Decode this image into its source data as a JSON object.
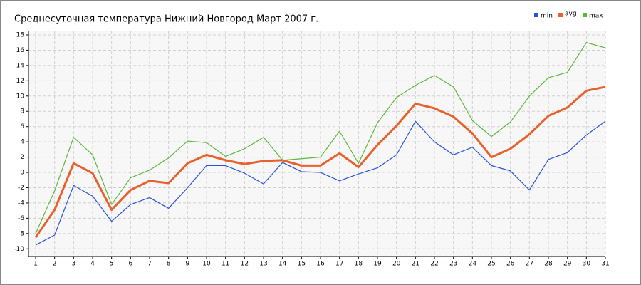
{
  "chart_data": {
    "type": "line",
    "title": "Среднесуточная температура Нижний Новгород  Март 2007 г.",
    "x": [
      1,
      2,
      3,
      4,
      5,
      6,
      7,
      8,
      9,
      10,
      11,
      12,
      13,
      14,
      15,
      16,
      17,
      18,
      19,
      20,
      21,
      22,
      23,
      24,
      25,
      26,
      27,
      28,
      29,
      30,
      31
    ],
    "xlim": [
      1,
      31
    ],
    "ylim": [
      -11,
      18
    ],
    "yticks": [
      -10,
      -8,
      -6,
      -4,
      -2,
      0,
      2,
      4,
      6,
      8,
      10,
      12,
      14,
      16,
      18
    ],
    "grid": true,
    "legend": "top-right",
    "series": [
      {
        "name": "min",
        "color": "#2a52d8",
        "values": [
          -9.5,
          -8.2,
          -1.7,
          -3.1,
          -6.4,
          -4.2,
          -3.3,
          -4.7,
          -2.0,
          0.9,
          0.9,
          -0.1,
          -1.5,
          1.3,
          0.1,
          0.0,
          -1.1,
          -0.2,
          0.6,
          2.3,
          6.7,
          4.0,
          2.3,
          3.3,
          0.9,
          0.2,
          -2.3,
          1.7,
          2.6,
          4.9,
          6.7
        ]
      },
      {
        "name": "avg",
        "color": "#e8602c",
        "values": [
          -8.5,
          -4.9,
          1.2,
          -0.1,
          -4.9,
          -2.3,
          -1.1,
          -1.4,
          1.2,
          2.3,
          1.6,
          1.1,
          1.5,
          1.6,
          0.9,
          0.9,
          2.5,
          0.7,
          3.6,
          6.1,
          9.0,
          8.4,
          7.3,
          5.1,
          2.0,
          3.1,
          5.0,
          7.4,
          8.5,
          10.7,
          11.2
        ]
      },
      {
        "name": "max",
        "color": "#5cb83a",
        "values": [
          -8.0,
          -2.4,
          4.6,
          2.3,
          -4.2,
          -0.7,
          0.3,
          1.9,
          4.1,
          3.9,
          2.1,
          3.1,
          4.6,
          1.6,
          1.8,
          2.0,
          5.4,
          1.2,
          6.5,
          9.8,
          11.4,
          12.7,
          11.2,
          6.8,
          4.7,
          6.6,
          10.0,
          12.4,
          13.1,
          17.0,
          16.3
        ]
      }
    ]
  }
}
